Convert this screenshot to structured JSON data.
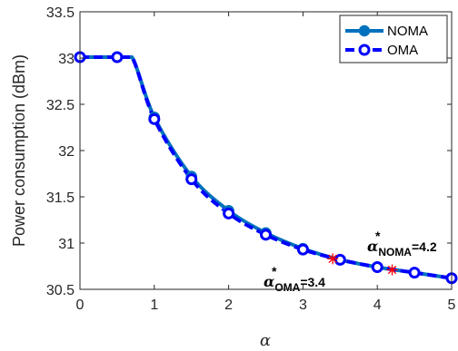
{
  "chart_data": {
    "type": "line",
    "xlabel": "α",
    "ylabel": "Power consumption (dBm)",
    "xlim": [
      0,
      5
    ],
    "ylim": [
      30.5,
      33.5
    ],
    "xticks": [
      "0",
      "1",
      "2",
      "3",
      "4",
      "5"
    ],
    "yticks": [
      "30.5",
      "31",
      "31.5",
      "32",
      "32.5",
      "33",
      "33.5"
    ],
    "grid": false,
    "legend_position": "top-right",
    "series": [
      {
        "name": "NOMA",
        "color": "#0072BD",
        "line_style": "solid",
        "marker": "filled-circle",
        "x": [
          0,
          0.5,
          0.7,
          1,
          1.5,
          2,
          2.5,
          3,
          3.5,
          4,
          4.5,
          5
        ],
        "y": [
          33.01,
          33.01,
          33.01,
          32.36,
          31.72,
          31.35,
          31.11,
          30.94,
          30.82,
          30.74,
          30.68,
          30.62
        ]
      },
      {
        "name": "OMA",
        "color": "#0000FF",
        "line_style": "dashed",
        "marker": "open-circle",
        "x": [
          0,
          0.5,
          0.7,
          1,
          1.5,
          2,
          2.5,
          3,
          3.5,
          4,
          4.5,
          5
        ],
        "y": [
          33.01,
          33.01,
          33.01,
          32.34,
          31.69,
          31.32,
          31.09,
          30.93,
          30.82,
          30.74,
          30.68,
          30.62
        ]
      }
    ],
    "annotations": [
      {
        "x": 4.2,
        "y": 30.71,
        "symbol": "star",
        "color": "#FF0000",
        "greek": "α",
        "sup": "*",
        "sub": "NOMA",
        "value": "=4.2"
      },
      {
        "x": 3.4,
        "y": 30.83,
        "symbol": "star",
        "color": "#FF0000",
        "greek": "α",
        "sup": "*",
        "sub": "OMA",
        "value": "=3.4"
      }
    ]
  }
}
